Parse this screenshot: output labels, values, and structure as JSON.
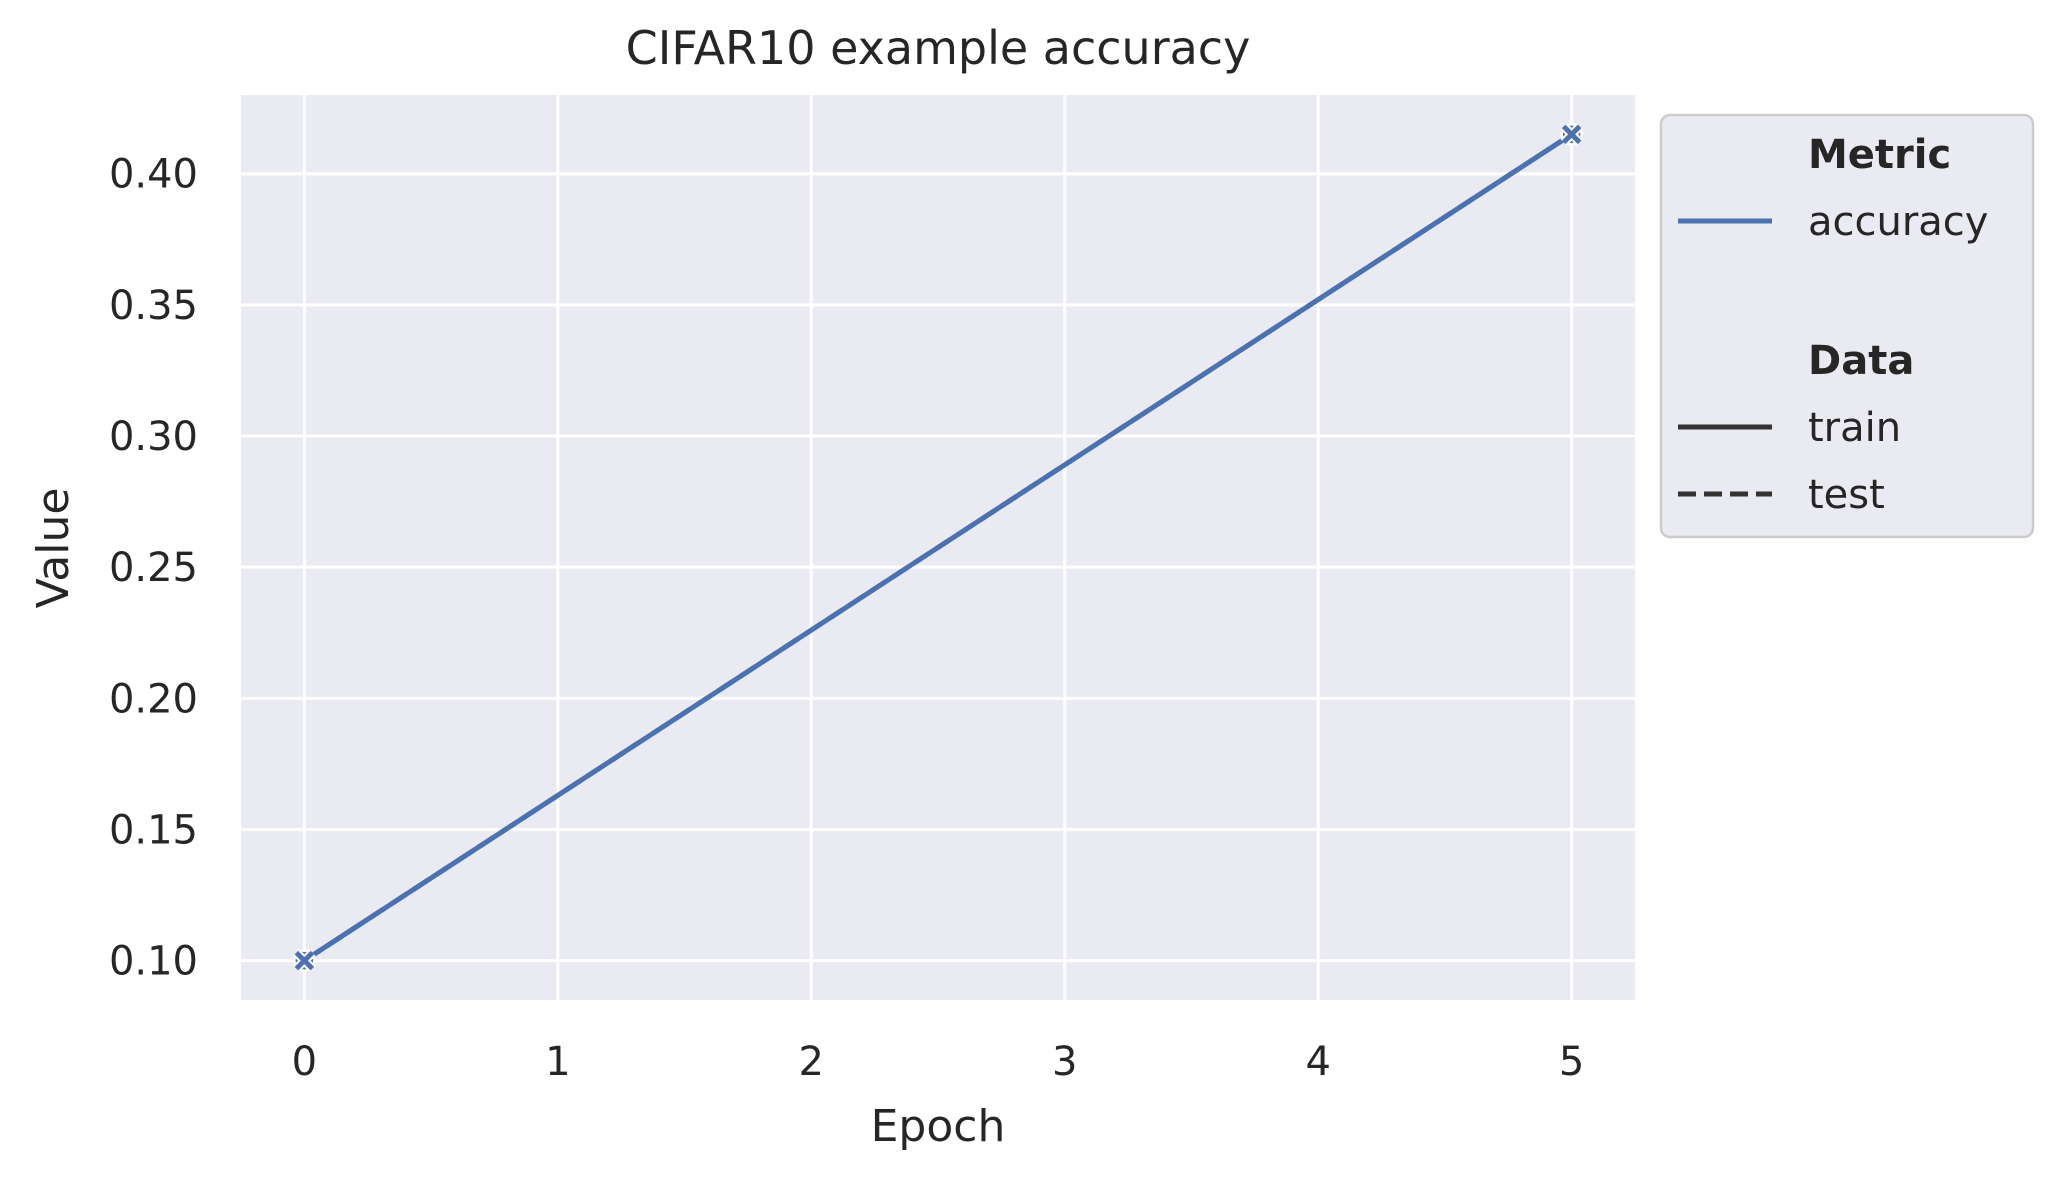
{
  "chart_data": {
    "type": "line",
    "title": "CIFAR10 example accuracy",
    "xlabel": "Epoch",
    "ylabel": "Value",
    "xlim": [
      -0.25,
      5.25
    ],
    "ylim": [
      0.085,
      0.43
    ],
    "x_ticks": [
      0,
      1,
      2,
      3,
      4,
      5
    ],
    "y_ticks": [
      0.1,
      0.15,
      0.2,
      0.25,
      0.3,
      0.35,
      0.4
    ],
    "grid": true,
    "background": "#eaeaf2",
    "series": [
      {
        "name": "accuracy",
        "data": "train",
        "style": "solid",
        "marker": "o",
        "color": "#4c72b0",
        "x": [
          0,
          5
        ],
        "y": [
          0.1,
          0.415
        ]
      },
      {
        "name": "accuracy",
        "data": "test",
        "style": "dashed",
        "marker": "x",
        "color": "#4c72b0",
        "x": [
          0,
          5
        ],
        "y": [
          0.1,
          0.415
        ]
      }
    ],
    "legend": {
      "position": "outside-right",
      "groups": [
        {
          "title": "Metric",
          "entries": [
            {
              "label": "accuracy",
              "color": "#4c72b0",
              "style": "solid"
            }
          ]
        },
        {
          "title": "Data",
          "entries": [
            {
              "label": "train",
              "color": "#333333",
              "style": "solid"
            },
            {
              "label": "test",
              "color": "#333333",
              "style": "dashed"
            }
          ]
        }
      ]
    }
  }
}
